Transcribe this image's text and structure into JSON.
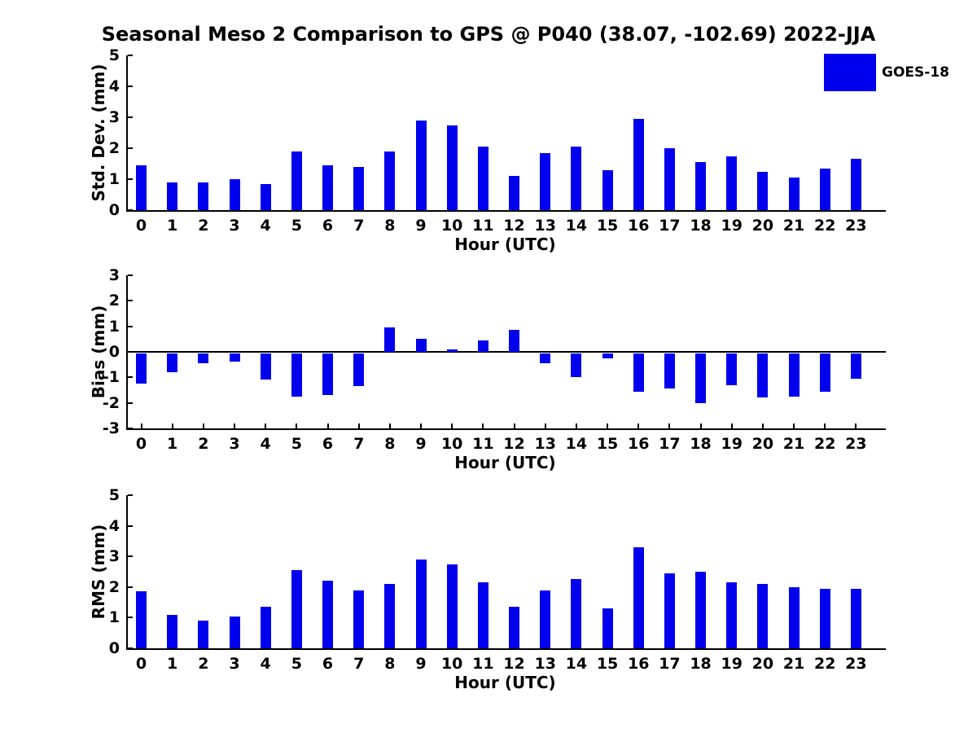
{
  "title": "Seasonal Meso 2 Comparison to GPS @ P040 (38.07, -102.69) 2022-JJA",
  "legend": {
    "label": "GOES-18",
    "color": "#0000EE",
    "position": "top-right"
  },
  "axis_color": "#000000",
  "chart_data": [
    {
      "type": "bar",
      "name": "std-dev",
      "ylabel": "Std. Dev. (mm)",
      "xlabel": "Hour (UTC)",
      "ylim": [
        0,
        5
      ],
      "yticks": [
        0,
        1,
        2,
        3,
        4,
        5
      ],
      "grid": false,
      "bar_color": "#0000EE",
      "series_name": "GOES-18",
      "categories": [
        "0",
        "1",
        "2",
        "3",
        "4",
        "5",
        "6",
        "7",
        "8",
        "9",
        "10",
        "11",
        "12",
        "13",
        "14",
        "15",
        "16",
        "17",
        "18",
        "19",
        "20",
        "21",
        "22",
        "23"
      ],
      "values": [
        1.45,
        0.9,
        0.9,
        1.0,
        0.85,
        1.9,
        1.45,
        1.4,
        1.9,
        2.9,
        2.75,
        2.05,
        1.1,
        1.85,
        2.05,
        1.3,
        2.95,
        2.0,
        1.55,
        1.75,
        1.25,
        1.05,
        1.35,
        1.65
      ]
    },
    {
      "type": "bar",
      "name": "bias",
      "ylabel": "Bias (mm)",
      "xlabel": "Hour (UTC)",
      "ylim": [
        -3,
        3
      ],
      "yticks": [
        -3,
        -2,
        -1,
        0,
        1,
        2,
        3
      ],
      "zero_line": true,
      "grid": false,
      "bar_color": "#0000EE",
      "series_name": "GOES-18",
      "categories": [
        "0",
        "1",
        "2",
        "3",
        "4",
        "5",
        "6",
        "7",
        "8",
        "9",
        "10",
        "11",
        "12",
        "13",
        "14",
        "15",
        "16",
        "17",
        "18",
        "19",
        "20",
        "21",
        "22",
        "23"
      ],
      "values": [
        -1.2,
        -0.75,
        -0.4,
        -0.35,
        -1.05,
        -1.7,
        -1.65,
        -1.3,
        0.95,
        0.5,
        0.1,
        0.45,
        0.85,
        -0.4,
        -0.95,
        -0.2,
        -1.5,
        -1.4,
        -1.95,
        -1.25,
        -1.75,
        -1.7,
        -1.5,
        -1.0
      ]
    },
    {
      "type": "bar",
      "name": "rms",
      "ylabel": "RMS (mm)",
      "xlabel": "Hour (UTC)",
      "ylim": [
        0,
        5
      ],
      "yticks": [
        0,
        1,
        2,
        3,
        4,
        5
      ],
      "grid": false,
      "bar_color": "#0000EE",
      "series_name": "GOES-18",
      "categories": [
        "0",
        "1",
        "2",
        "3",
        "4",
        "5",
        "6",
        "7",
        "8",
        "9",
        "10",
        "11",
        "12",
        "13",
        "14",
        "15",
        "16",
        "17",
        "18",
        "19",
        "20",
        "21",
        "22",
        "23"
      ],
      "values": [
        1.85,
        1.1,
        0.9,
        1.05,
        1.35,
        2.55,
        2.2,
        1.9,
        2.1,
        2.9,
        2.75,
        2.15,
        1.35,
        1.9,
        2.25,
        1.3,
        3.3,
        2.45,
        2.5,
        2.15,
        2.1,
        2.0,
        1.95,
        1.95
      ]
    }
  ]
}
